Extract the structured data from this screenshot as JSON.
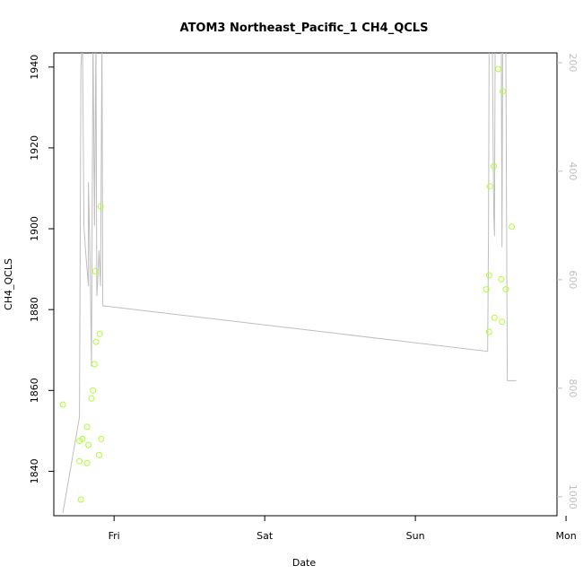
{
  "chart_data": {
    "type": "scatter",
    "title": "ATOM3 Northeast_Pacific_1 CH4_QCLS",
    "xlabel": "Date",
    "ylabel": "CH4_QCLS",
    "xlim": [
      -1.36,
      1.98
    ],
    "x_ticks": [
      {
        "value": -0.96,
        "label": "Fri"
      },
      {
        "value": 0.04,
        "label": "Sat"
      },
      {
        "value": 1.04,
        "label": "Sun"
      },
      {
        "value": 2.04,
        "label": "Mon"
      }
    ],
    "ylim": [
      1829.0,
      1943.5
    ],
    "y_ticks": [
      1840,
      1860,
      1880,
      1900,
      1920,
      1940
    ],
    "right_axis": {
      "ylim": [
        1035,
        182
      ],
      "ticks": [
        200,
        400,
        600,
        800,
        1000
      ],
      "color": "#bfbfbf"
    },
    "points_color": "#adff2f",
    "line_color": "#bebebe",
    "points": [
      {
        "x": -1.3,
        "y": 1856.5
      },
      {
        "x": -1.19,
        "y": 1847.5
      },
      {
        "x": -1.19,
        "y": 1842.5
      },
      {
        "x": -1.18,
        "y": 1833.0
      },
      {
        "x": -1.17,
        "y": 1848.0
      },
      {
        "x": -1.14,
        "y": 1851.0
      },
      {
        "x": -1.14,
        "y": 1842.0
      },
      {
        "x": -1.13,
        "y": 1846.5
      },
      {
        "x": -1.11,
        "y": 1858.0
      },
      {
        "x": -1.1,
        "y": 1860.0
      },
      {
        "x": -1.09,
        "y": 1866.5
      },
      {
        "x": -1.085,
        "y": 1889.5
      },
      {
        "x": -1.08,
        "y": 1872.0
      },
      {
        "x": -1.06,
        "y": 1844.0
      },
      {
        "x": -1.055,
        "y": 1874.0
      },
      {
        "x": -1.05,
        "y": 1905.5
      },
      {
        "x": -1.045,
        "y": 1848.0
      },
      {
        "x": 1.51,
        "y": 1885.0
      },
      {
        "x": 1.53,
        "y": 1888.5
      },
      {
        "x": 1.53,
        "y": 1874.5
      },
      {
        "x": 1.535,
        "y": 1910.5
      },
      {
        "x": 1.56,
        "y": 1915.5
      },
      {
        "x": 1.565,
        "y": 1878.0
      },
      {
        "x": 1.59,
        "y": 1939.5
      },
      {
        "x": 1.61,
        "y": 1887.5
      },
      {
        "x": 1.615,
        "y": 1877.0
      },
      {
        "x": 1.62,
        "y": 1934.0
      },
      {
        "x": 1.64,
        "y": 1885.0
      },
      {
        "x": 1.68,
        "y": 1900.5
      }
    ],
    "line": [
      {
        "x": -1.3,
        "y": 1029.5
      },
      {
        "x": -1.19,
        "y": 853.0
      },
      {
        "x": -1.18,
        "y": 210.0
      },
      {
        "x": -1.17,
        "y": 150.0
      },
      {
        "x": -1.16,
        "y": 500.0
      },
      {
        "x": -1.15,
        "y": 545.0
      },
      {
        "x": -1.13,
        "y": 612.0
      },
      {
        "x": -1.13,
        "y": 420.0
      },
      {
        "x": -1.12,
        "y": 550.0
      },
      {
        "x": -1.11,
        "y": 760.0
      },
      {
        "x": -1.1,
        "y": 150.0
      },
      {
        "x": -1.09,
        "y": 500.0
      },
      {
        "x": -1.08,
        "y": 150.0
      },
      {
        "x": -1.075,
        "y": 630.0
      },
      {
        "x": -1.07,
        "y": 612.0
      },
      {
        "x": -1.06,
        "y": 546.0
      },
      {
        "x": -1.05,
        "y": 612.0
      },
      {
        "x": -1.04,
        "y": 150.0
      },
      {
        "x": -1.035,
        "y": 648.0
      },
      {
        "x": 1.52,
        "y": 732.0
      },
      {
        "x": 1.525,
        "y": 520.0
      },
      {
        "x": 1.53,
        "y": 150.0
      },
      {
        "x": 1.55,
        "y": 150.0
      },
      {
        "x": 1.56,
        "y": 480.0
      },
      {
        "x": 1.565,
        "y": 520.0
      },
      {
        "x": 1.57,
        "y": 150.0
      },
      {
        "x": 1.61,
        "y": 150.0
      },
      {
        "x": 1.615,
        "y": 540.0
      },
      {
        "x": 1.62,
        "y": 150.0
      },
      {
        "x": 1.64,
        "y": 150.0
      },
      {
        "x": 1.65,
        "y": 786.0
      },
      {
        "x": 1.71,
        "y": 786.0
      }
    ]
  }
}
